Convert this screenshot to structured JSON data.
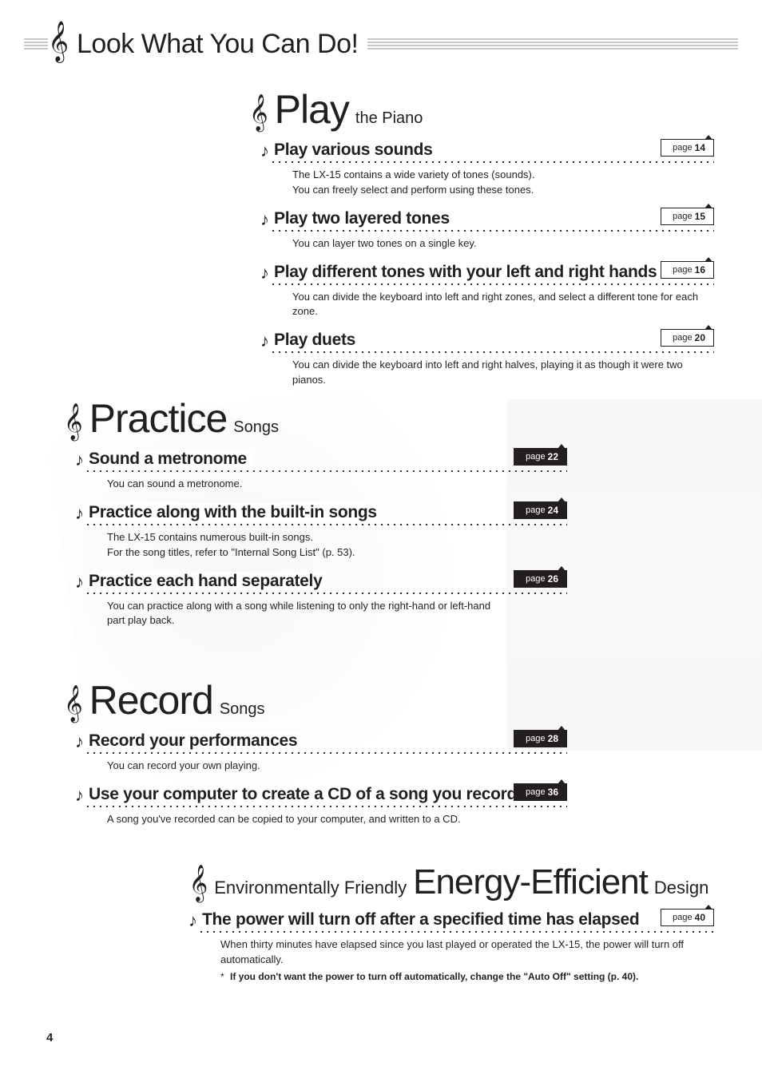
{
  "page": {
    "number": "4",
    "title": "Look What You Can Do!"
  },
  "sections": {
    "play": {
      "big": "Play",
      "small": "the Piano",
      "items": [
        {
          "title": "Play various sounds",
          "page_label": "page",
          "page_num": "14",
          "tag_style": "light",
          "body": [
            "The LX-15 contains a wide variety of tones (sounds).",
            "You can freely select and perform using these tones."
          ]
        },
        {
          "title": "Play two layered tones",
          "page_label": "page",
          "page_num": "15",
          "tag_style": "light",
          "body": [
            "You can layer two tones on a single key."
          ]
        },
        {
          "title": "Play different tones with your left and right hands",
          "page_label": "page",
          "page_num": "16",
          "tag_style": "light",
          "body": [
            "You can divide the keyboard into left and right zones, and select a different tone for each zone."
          ]
        },
        {
          "title": "Play duets",
          "page_label": "page",
          "page_num": "20",
          "tag_style": "light",
          "body": [
            "You can divide the keyboard into left and right halves, playing it as though it were two pianos."
          ]
        }
      ]
    },
    "practice": {
      "big": "Practice",
      "small": "Songs",
      "items": [
        {
          "title": "Sound a metronome",
          "page_label": "page",
          "page_num": "22",
          "tag_style": "dark",
          "body": [
            "You can sound a metronome."
          ]
        },
        {
          "title": "Practice along with the built-in songs",
          "page_label": "page",
          "page_num": "24",
          "tag_style": "dark",
          "body": [
            "The LX-15 contains numerous built-in songs.",
            "For the song titles, refer to \"Internal Song List\" (p. 53)."
          ]
        },
        {
          "title": "Practice each hand separately",
          "page_label": "page",
          "page_num": "26",
          "tag_style": "dark",
          "body": [
            "You can practice along with a song while listening to only the right-hand or left-hand part play back."
          ]
        }
      ]
    },
    "record": {
      "big": "Record",
      "small": "Songs",
      "items": [
        {
          "title": "Record your performances",
          "page_label": "page",
          "page_num": "28",
          "tag_style": "dark",
          "body": [
            "You can record your own playing."
          ]
        },
        {
          "title": "Use your computer to create a CD of a song you recorded",
          "page_label": "page",
          "page_num": "36",
          "tag_style": "dark",
          "body": [
            "A song you've recorded can be copied to your computer, and written to a CD."
          ]
        }
      ]
    },
    "energy": {
      "pre": "Environmentally Friendly",
      "big": "Energy-Efficient",
      "post": "Design",
      "items": [
        {
          "title": "The power will turn off after a specified time has elapsed",
          "page_label": "page",
          "page_num": "40",
          "tag_style": "light",
          "body": [
            "When thirty minutes have elapsed since you last played or operated the LX-15, the power will turn off automatically."
          ],
          "footnote": "If you don't want the power to turn off automatically, change the \"Auto Off\" setting (p. 40)."
        }
      ]
    }
  }
}
